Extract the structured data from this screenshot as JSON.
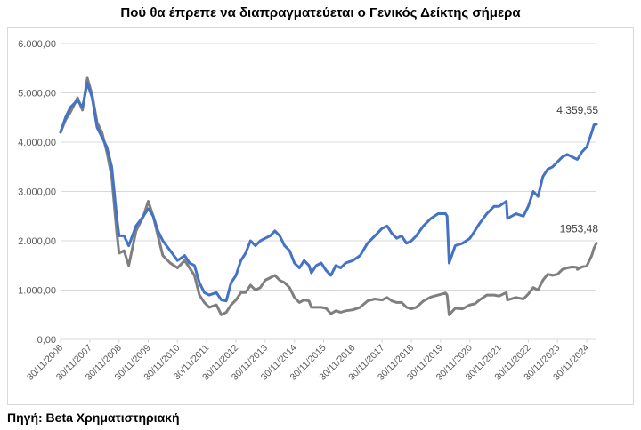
{
  "title": "Πού θα έπρεπε να διαπραγματεύεται ο Γενικός Δείκτης σήμερα",
  "source": "Πηγή: Beta Χρηματιστηριακή",
  "colors": {
    "series_blue": "#4472c4",
    "series_gray": "#7f7f7f",
    "grid": "#d9d9d9",
    "axis_text": "#595959"
  },
  "chart_data": {
    "type": "line",
    "title": "Πού θα έπρεπε να διαπραγματεύεται ο Γενικός Δείκτης σήμερα",
    "xlabel": "",
    "ylabel": "",
    "ylim": [
      0,
      6000
    ],
    "xlim": [
      "2006-11-30",
      "2025-03-31"
    ],
    "grid": true,
    "legend": "none",
    "y_ticks": [
      0,
      1000,
      2000,
      3000,
      4000,
      5000,
      6000
    ],
    "y_tick_labels": [
      "0,00",
      "1.000,00",
      "2.000,00",
      "3.000,00",
      "4.000,00",
      "5.000,00",
      "6.000,00"
    ],
    "x_ticks": [
      "2006-11-30",
      "2007-11-30",
      "2008-11-30",
      "2009-11-30",
      "2010-11-30",
      "2011-11-30",
      "2012-11-30",
      "2013-11-30",
      "2014-11-30",
      "2015-11-30",
      "2016-11-30",
      "2017-11-30",
      "2018-11-30",
      "2019-11-30",
      "2020-11-30",
      "2021-11-30",
      "2022-11-30",
      "2023-11-30",
      "2024-11-30"
    ],
    "x_tick_labels": [
      "30/11/2006",
      "30/11/2007",
      "30/11/2008",
      "30/11/2009",
      "30/11/2010",
      "30/11/2011",
      "30/11/2012",
      "30/11/2013",
      "30/11/2014",
      "30/11/2015",
      "30/11/2016",
      "30/11/2017",
      "30/11/2018",
      "30/11/2019",
      "30/11/2020",
      "30/11/2021",
      "30/11/2022",
      "30/11/2023",
      "30/11/2024"
    ],
    "series": [
      {
        "color": "#4472c4",
        "end_label": "4.359,55",
        "points": [
          [
            "2006-11-30",
            4200
          ],
          [
            "2007-01-31",
            4500
          ],
          [
            "2007-03-31",
            4700
          ],
          [
            "2007-06-30",
            4850
          ],
          [
            "2007-08-31",
            4700
          ],
          [
            "2007-10-31",
            5200
          ],
          [
            "2007-12-31",
            4900
          ],
          [
            "2008-02-29",
            4300
          ],
          [
            "2008-04-30",
            4100
          ],
          [
            "2008-06-30",
            3900
          ],
          [
            "2008-08-31",
            3500
          ],
          [
            "2008-10-31",
            2500
          ],
          [
            "2008-11-30",
            2100
          ],
          [
            "2009-01-31",
            2100
          ],
          [
            "2009-03-31",
            1900
          ],
          [
            "2009-06-30",
            2300
          ],
          [
            "2009-09-30",
            2500
          ],
          [
            "2009-11-30",
            2650
          ],
          [
            "2010-01-31",
            2500
          ],
          [
            "2010-03-31",
            2200
          ],
          [
            "2010-05-31",
            2000
          ],
          [
            "2010-08-31",
            1800
          ],
          [
            "2010-11-30",
            1600
          ],
          [
            "2011-02-28",
            1700
          ],
          [
            "2011-04-30",
            1550
          ],
          [
            "2011-06-30",
            1500
          ],
          [
            "2011-08-31",
            1150
          ],
          [
            "2011-10-31",
            950
          ],
          [
            "2011-12-31",
            900
          ],
          [
            "2012-03-31",
            950
          ],
          [
            "2012-05-31",
            800
          ],
          [
            "2012-07-31",
            780
          ],
          [
            "2012-09-30",
            1150
          ],
          [
            "2012-11-30",
            1300
          ],
          [
            "2013-01-31",
            1600
          ],
          [
            "2013-03-31",
            1750
          ],
          [
            "2013-05-31",
            2000
          ],
          [
            "2013-07-31",
            1900
          ],
          [
            "2013-09-30",
            2000
          ],
          [
            "2013-11-30",
            2050
          ],
          [
            "2014-01-31",
            2100
          ],
          [
            "2014-03-31",
            2200
          ],
          [
            "2014-05-31",
            2100
          ],
          [
            "2014-07-31",
            1900
          ],
          [
            "2014-09-30",
            1800
          ],
          [
            "2014-11-30",
            1550
          ],
          [
            "2015-01-31",
            1450
          ],
          [
            "2015-03-31",
            1600
          ],
          [
            "2015-05-31",
            1500
          ],
          [
            "2015-06-30",
            1350
          ],
          [
            "2015-08-31",
            1500
          ],
          [
            "2015-10-31",
            1550
          ],
          [
            "2015-12-31",
            1400
          ],
          [
            "2016-02-29",
            1300
          ],
          [
            "2016-04-30",
            1500
          ],
          [
            "2016-06-30",
            1450
          ],
          [
            "2016-08-31",
            1550
          ],
          [
            "2016-11-30",
            1600
          ],
          [
            "2017-02-28",
            1700
          ],
          [
            "2017-05-31",
            1950
          ],
          [
            "2017-08-31",
            2100
          ],
          [
            "2017-11-30",
            2250
          ],
          [
            "2018-01-31",
            2300
          ],
          [
            "2018-03-31",
            2150
          ],
          [
            "2018-05-31",
            2050
          ],
          [
            "2018-07-31",
            2100
          ],
          [
            "2018-09-30",
            1950
          ],
          [
            "2018-11-30",
            2000
          ],
          [
            "2019-01-31",
            2100
          ],
          [
            "2019-04-30",
            2300
          ],
          [
            "2019-07-31",
            2450
          ],
          [
            "2019-10-31",
            2550
          ],
          [
            "2020-01-31",
            2550
          ],
          [
            "2020-02-20",
            2500
          ],
          [
            "2020-03-16",
            1550
          ],
          [
            "2020-05-31",
            1900
          ],
          [
            "2020-08-31",
            1950
          ],
          [
            "2020-11-30",
            2050
          ],
          [
            "2021-01-31",
            2200
          ],
          [
            "2021-03-31",
            2350
          ],
          [
            "2021-06-30",
            2550
          ],
          [
            "2021-09-30",
            2700
          ],
          [
            "2021-11-30",
            2700
          ],
          [
            "2022-02-28",
            2800
          ],
          [
            "2022-03-15",
            2450
          ],
          [
            "2022-06-30",
            2550
          ],
          [
            "2022-09-30",
            2500
          ],
          [
            "2022-11-30",
            2700
          ],
          [
            "2023-01-31",
            3000
          ],
          [
            "2023-03-31",
            2900
          ],
          [
            "2023-05-31",
            3300
          ],
          [
            "2023-07-31",
            3450
          ],
          [
            "2023-09-30",
            3500
          ],
          [
            "2023-11-30",
            3600
          ],
          [
            "2024-01-31",
            3700
          ],
          [
            "2024-03-31",
            3750
          ],
          [
            "2024-05-31",
            3700
          ],
          [
            "2024-07-31",
            3650
          ],
          [
            "2024-08-05",
            3650
          ],
          [
            "2024-09-30",
            3800
          ],
          [
            "2024-11-30",
            3900
          ],
          [
            "2025-01-31",
            4200
          ],
          [
            "2025-02-28",
            4350
          ],
          [
            "2025-03-31",
            4359.55
          ]
        ]
      },
      {
        "color": "#7f7f7f",
        "end_label": "1953,48",
        "points": [
          [
            "2006-11-30",
            4200
          ],
          [
            "2007-01-31",
            4450
          ],
          [
            "2007-03-31",
            4600
          ],
          [
            "2007-06-30",
            4900
          ],
          [
            "2007-08-31",
            4650
          ],
          [
            "2007-10-31",
            5300
          ],
          [
            "2007-12-31",
            4950
          ],
          [
            "2008-02-29",
            4400
          ],
          [
            "2008-04-30",
            4200
          ],
          [
            "2008-06-30",
            3800
          ],
          [
            "2008-08-31",
            3300
          ],
          [
            "2008-10-31",
            2200
          ],
          [
            "2008-11-30",
            1750
          ],
          [
            "2009-01-31",
            1800
          ],
          [
            "2009-03-31",
            1500
          ],
          [
            "2009-06-30",
            2200
          ],
          [
            "2009-09-30",
            2500
          ],
          [
            "2009-11-30",
            2800
          ],
          [
            "2010-01-31",
            2500
          ],
          [
            "2010-03-31",
            2100
          ],
          [
            "2010-05-31",
            1700
          ],
          [
            "2010-08-31",
            1550
          ],
          [
            "2010-11-30",
            1450
          ],
          [
            "2011-02-28",
            1600
          ],
          [
            "2011-04-30",
            1450
          ],
          [
            "2011-06-30",
            1300
          ],
          [
            "2011-08-31",
            900
          ],
          [
            "2011-10-31",
            750
          ],
          [
            "2011-12-31",
            650
          ],
          [
            "2012-03-31",
            700
          ],
          [
            "2012-05-31",
            500
          ],
          [
            "2012-07-31",
            550
          ],
          [
            "2012-09-30",
            700
          ],
          [
            "2012-11-30",
            800
          ],
          [
            "2013-01-31",
            950
          ],
          [
            "2013-03-31",
            950
          ],
          [
            "2013-05-31",
            1100
          ],
          [
            "2013-07-31",
            1000
          ],
          [
            "2013-09-30",
            1050
          ],
          [
            "2013-11-30",
            1200
          ],
          [
            "2014-01-31",
            1250
          ],
          [
            "2014-03-31",
            1300
          ],
          [
            "2014-05-31",
            1200
          ],
          [
            "2014-07-31",
            1150
          ],
          [
            "2014-09-30",
            1050
          ],
          [
            "2014-11-30",
            850
          ],
          [
            "2015-01-31",
            750
          ],
          [
            "2015-03-31",
            800
          ],
          [
            "2015-05-31",
            780
          ],
          [
            "2015-06-30",
            650
          ],
          [
            "2015-08-31",
            650
          ],
          [
            "2015-10-31",
            650
          ],
          [
            "2015-12-31",
            630
          ],
          [
            "2016-02-29",
            520
          ],
          [
            "2016-04-30",
            580
          ],
          [
            "2016-06-30",
            550
          ],
          [
            "2016-08-31",
            580
          ],
          [
            "2016-11-30",
            600
          ],
          [
            "2017-02-28",
            650
          ],
          [
            "2017-05-31",
            780
          ],
          [
            "2017-08-31",
            820
          ],
          [
            "2017-11-30",
            800
          ],
          [
            "2018-01-31",
            850
          ],
          [
            "2018-03-31",
            780
          ],
          [
            "2018-05-31",
            750
          ],
          [
            "2018-07-31",
            750
          ],
          [
            "2018-09-30",
            650
          ],
          [
            "2018-11-30",
            620
          ],
          [
            "2019-01-31",
            650
          ],
          [
            "2019-04-30",
            780
          ],
          [
            "2019-07-31",
            860
          ],
          [
            "2019-10-31",
            900
          ],
          [
            "2020-01-31",
            940
          ],
          [
            "2020-02-20",
            900
          ],
          [
            "2020-03-16",
            500
          ],
          [
            "2020-05-31",
            630
          ],
          [
            "2020-08-31",
            620
          ],
          [
            "2020-11-30",
            700
          ],
          [
            "2021-01-31",
            720
          ],
          [
            "2021-03-31",
            800
          ],
          [
            "2021-06-30",
            900
          ],
          [
            "2021-09-30",
            900
          ],
          [
            "2021-11-30",
            880
          ],
          [
            "2022-02-28",
            950
          ],
          [
            "2022-03-15",
            800
          ],
          [
            "2022-06-30",
            850
          ],
          [
            "2022-09-30",
            820
          ],
          [
            "2022-11-30",
            920
          ],
          [
            "2023-01-31",
            1050
          ],
          [
            "2023-03-31",
            1000
          ],
          [
            "2023-05-31",
            1200
          ],
          [
            "2023-07-31",
            1320
          ],
          [
            "2023-09-30",
            1300
          ],
          [
            "2023-11-30",
            1320
          ],
          [
            "2024-01-31",
            1420
          ],
          [
            "2024-03-31",
            1450
          ],
          [
            "2024-05-31",
            1470
          ],
          [
            "2024-07-31",
            1460
          ],
          [
            "2024-08-05",
            1420
          ],
          [
            "2024-09-30",
            1470
          ],
          [
            "2024-11-30",
            1490
          ],
          [
            "2025-01-31",
            1700
          ],
          [
            "2025-02-28",
            1850
          ],
          [
            "2025-03-31",
            1953.48
          ]
        ]
      }
    ]
  }
}
